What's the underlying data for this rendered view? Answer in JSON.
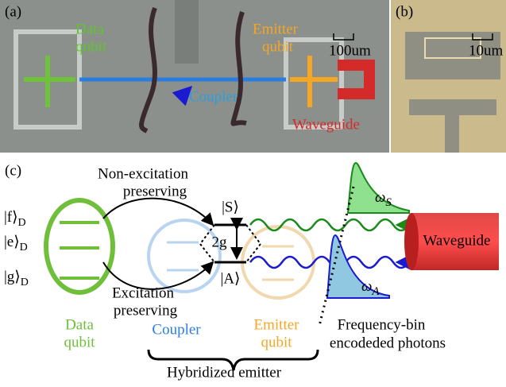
{
  "panel_a": {
    "label": "(a)",
    "data_qubit": [
      "Data",
      "qubit"
    ],
    "emitter_qubit": [
      "Emitter",
      "qubit"
    ],
    "scale": "100um",
    "coupler": "Coupler",
    "waveguide": "Waveguide"
  },
  "panel_b": {
    "label": "(b)",
    "scale": "10um"
  },
  "panel_c": {
    "label": "(c)",
    "non_excitation": [
      "Non-excitation",
      "preserving"
    ],
    "excitation": [
      "Excitation",
      "preserving"
    ],
    "levels": [
      {
        "ket": "|f⟩",
        "sub": "D"
      },
      {
        "ket": "|e⟩",
        "sub": "D"
      },
      {
        "ket": "|g⟩",
        "sub": "D"
      }
    ],
    "state_s": "|S⟩",
    "state_a": "|A⟩",
    "coupling": "2g",
    "omega_s": {
      "sym": "ω",
      "sub": "S"
    },
    "omega_a": {
      "sym": "ω",
      "sub": "A"
    },
    "waveguide": "Waveguide",
    "data_qubit": [
      "Data",
      "qubit"
    ],
    "coupler": "Coupler",
    "emitter_qubit": [
      "Emitter",
      "qubit"
    ],
    "photons": [
      "Frequency-bin",
      "encodeded photons"
    ],
    "hybridized": "Hybridized emitter"
  }
}
